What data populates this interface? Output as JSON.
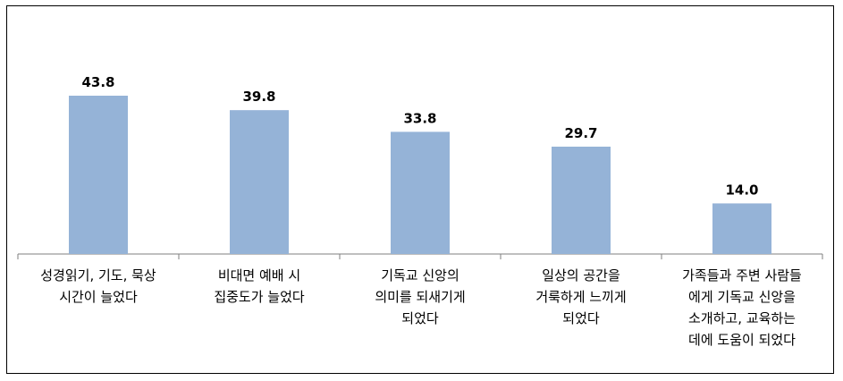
{
  "chart_data": {
    "type": "bar",
    "categories": [
      [
        "성경읽기, 기도, 묵상",
        "시간이 늘었다"
      ],
      [
        "비대면 예배 시",
        "집중도가 늘었다"
      ],
      [
        "기독교 신앙의",
        "의미를 되새기게",
        "되었다"
      ],
      [
        "일상의 공간을",
        "거룩하게 느끼게",
        "되었다"
      ],
      [
        "가족들과 주변 사람들",
        "에게 기독교 신앙을",
        "소개하고, 교육하는",
        "데에 도움이 되었다"
      ]
    ],
    "values": [
      43.8,
      39.8,
      33.8,
      29.7,
      14.0
    ],
    "value_labels": [
      "43.8",
      "39.8",
      "33.8",
      "29.7",
      "14.0"
    ],
    "ylim": [
      0,
      50
    ],
    "bar_color": "#95B3D7",
    "grid": false,
    "legend": "none"
  }
}
